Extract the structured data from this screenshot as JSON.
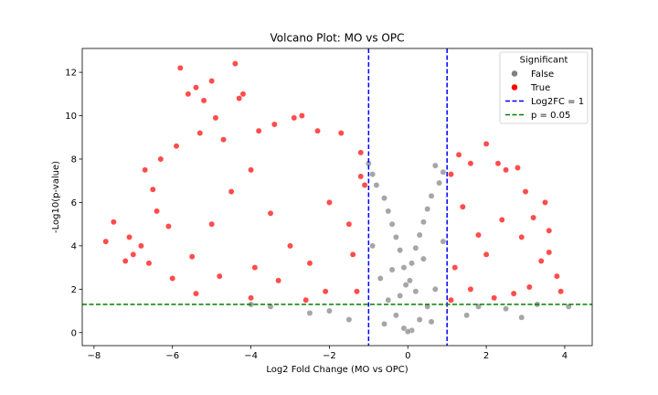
{
  "chart_data": {
    "type": "scatter",
    "title": "Volcano Plot: MO vs OPC",
    "xlabel": "Log2 Fold Change (MO vs OPC)",
    "ylabel": "-Log10(p-value)",
    "xlim": [
      -8.3,
      4.7
    ],
    "ylim": [
      -0.6,
      13.1
    ],
    "xticks": [
      -8,
      -6,
      -4,
      -2,
      0,
      2,
      4
    ],
    "yticks": [
      0,
      2,
      4,
      6,
      8,
      10,
      12
    ],
    "grid": false,
    "legend": {
      "title": "Significant",
      "placement": "upper right",
      "entries": [
        {
          "label": "False",
          "kind": "marker",
          "color": "#808080"
        },
        {
          "label": "True",
          "kind": "marker",
          "color": "#ff0000"
        },
        {
          "label": "Log2FC = 1",
          "kind": "dashed-line",
          "color": "#0000ff"
        },
        {
          "label": "p = 0.05",
          "kind": "dashed-line",
          "color": "#008000"
        }
      ]
    },
    "reference_lines": [
      {
        "orientation": "vertical",
        "value": -1,
        "color": "#0000ff",
        "style": "dashed"
      },
      {
        "orientation": "vertical",
        "value": 1,
        "color": "#0000ff",
        "style": "dashed"
      },
      {
        "orientation": "horizontal",
        "value": 1.3,
        "color": "#008000",
        "style": "dashed"
      }
    ],
    "series": [
      {
        "name": "False",
        "color": "#808080",
        "points": [
          [
            -1.0,
            7.8
          ],
          [
            -0.9,
            7.3
          ],
          [
            -0.8,
            6.8
          ],
          [
            -0.6,
            6.2
          ],
          [
            -0.5,
            5.6
          ],
          [
            -0.4,
            5.0
          ],
          [
            -0.3,
            4.4
          ],
          [
            -0.2,
            3.8
          ],
          [
            -0.1,
            3.0
          ],
          [
            -0.05,
            2.2
          ],
          [
            0.05,
            2.4
          ],
          [
            0.1,
            3.2
          ],
          [
            0.2,
            3.9
          ],
          [
            0.3,
            4.5
          ],
          [
            0.4,
            5.1
          ],
          [
            0.5,
            5.7
          ],
          [
            0.6,
            6.3
          ],
          [
            0.7,
            7.7
          ],
          [
            0.8,
            6.9
          ],
          [
            0.9,
            7.4
          ],
          [
            -0.7,
            2.5
          ],
          [
            -0.5,
            1.5
          ],
          [
            -0.3,
            0.8
          ],
          [
            -0.1,
            0.2
          ],
          [
            0.1,
            0.1
          ],
          [
            0.3,
            0.6
          ],
          [
            0.5,
            1.2
          ],
          [
            0.7,
            2.0
          ],
          [
            -0.9,
            4.0
          ],
          [
            0.9,
            4.2
          ],
          [
            -2.5,
            0.9
          ],
          [
            -3.5,
            1.2
          ],
          [
            -1.5,
            0.6
          ],
          [
            1.5,
            0.8
          ],
          [
            2.5,
            1.1
          ],
          [
            2.9,
            0.7
          ],
          [
            -2.0,
            1.0
          ],
          [
            1.8,
            1.2
          ],
          [
            3.3,
            1.3
          ],
          [
            4.1,
            1.2
          ],
          [
            -4.0,
            1.3
          ],
          [
            -0.6,
            0.4
          ],
          [
            0.6,
            0.5
          ],
          [
            0.0,
            0.05
          ],
          [
            -0.2,
            1.7
          ],
          [
            0.2,
            1.9
          ],
          [
            -0.4,
            2.9
          ],
          [
            0.4,
            3.4
          ]
        ]
      },
      {
        "name": "True",
        "color": "#ff0000",
        "points": [
          [
            -7.7,
            4.2
          ],
          [
            -7.5,
            5.1
          ],
          [
            -7.2,
            3.3
          ],
          [
            -7.1,
            4.4
          ],
          [
            -6.8,
            4.0
          ],
          [
            -6.7,
            7.5
          ],
          [
            -6.6,
            3.2
          ],
          [
            -6.3,
            8.0
          ],
          [
            -6.1,
            4.9
          ],
          [
            -5.8,
            12.2
          ],
          [
            -5.6,
            11.0
          ],
          [
            -5.4,
            11.3
          ],
          [
            -5.2,
            10.7
          ],
          [
            -5.0,
            11.6
          ],
          [
            -4.9,
            9.9
          ],
          [
            -4.4,
            12.4
          ],
          [
            -4.3,
            10.8
          ],
          [
            -4.2,
            11.0
          ],
          [
            -3.8,
            9.3
          ],
          [
            -3.4,
            9.6
          ],
          [
            -2.9,
            9.9
          ],
          [
            -2.7,
            10.0
          ],
          [
            -2.3,
            9.3
          ],
          [
            -1.7,
            9.2
          ],
          [
            -1.2,
            8.3
          ],
          [
            -1.1,
            6.8
          ],
          [
            -1.3,
            1.9
          ],
          [
            -2.6,
            1.5
          ],
          [
            -4.0,
            1.6
          ],
          [
            -5.4,
            1.8
          ],
          [
            -6.0,
            2.5
          ],
          [
            -5.5,
            3.5
          ],
          [
            -5.0,
            5.0
          ],
          [
            -4.5,
            6.5
          ],
          [
            -4.0,
            7.5
          ],
          [
            -3.5,
            5.5
          ],
          [
            -3.0,
            4.0
          ],
          [
            -2.5,
            3.2
          ],
          [
            -2.0,
            6.0
          ],
          [
            -1.5,
            5.0
          ],
          [
            1.1,
            7.3
          ],
          [
            1.3,
            8.2
          ],
          [
            1.6,
            7.8
          ],
          [
            2.0,
            8.7
          ],
          [
            2.3,
            7.8
          ],
          [
            2.5,
            7.5
          ],
          [
            2.8,
            7.6
          ],
          [
            3.0,
            6.5
          ],
          [
            3.2,
            5.3
          ],
          [
            3.5,
            6.0
          ],
          [
            3.6,
            4.7
          ],
          [
            3.8,
            2.6
          ],
          [
            3.9,
            1.9
          ],
          [
            3.4,
            3.3
          ],
          [
            3.1,
            2.1
          ],
          [
            2.7,
            1.8
          ],
          [
            2.2,
            1.6
          ],
          [
            1.6,
            2.0
          ],
          [
            1.2,
            3.0
          ],
          [
            1.8,
            4.5
          ],
          [
            2.4,
            5.2
          ],
          [
            2.0,
            3.6
          ],
          [
            1.4,
            5.8
          ],
          [
            2.9,
            4.4
          ],
          [
            1.1,
            1.5
          ],
          [
            3.6,
            3.7
          ],
          [
            -6.4,
            5.6
          ],
          [
            -6.5,
            6.6
          ],
          [
            -7.0,
            3.6
          ],
          [
            -5.9,
            8.6
          ],
          [
            -5.3,
            9.2
          ],
          [
            -4.7,
            8.9
          ],
          [
            -3.3,
            2.4
          ],
          [
            -2.1,
            1.9
          ],
          [
            -1.4,
            3.6
          ],
          [
            -1.2,
            7.2
          ],
          [
            -3.9,
            3.0
          ],
          [
            -4.8,
            2.6
          ]
        ]
      }
    ]
  }
}
